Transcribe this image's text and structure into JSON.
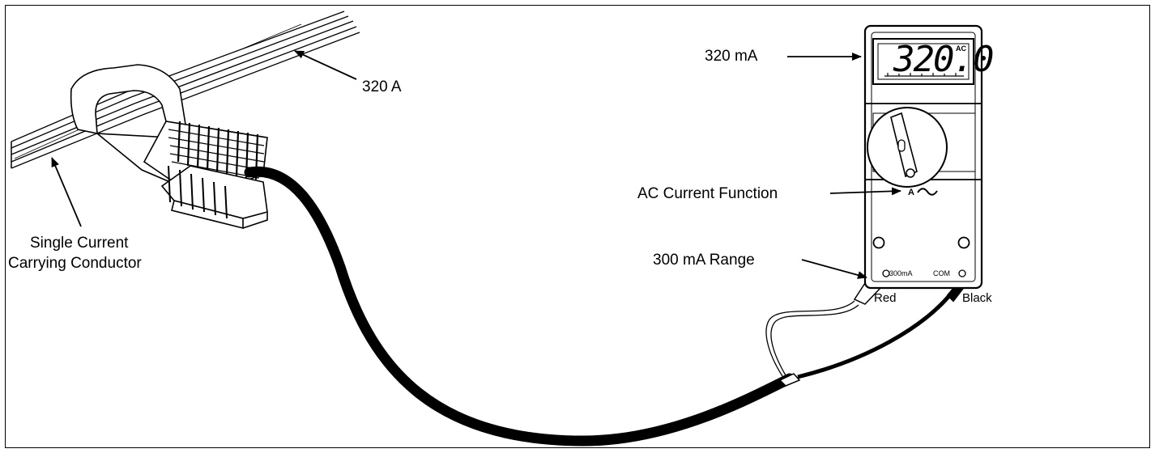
{
  "labels": {
    "conductor_current": "320 A",
    "conductor_line1": "Single Current",
    "conductor_line2": "Carrying Conductor",
    "meter_reading_label": "320 mA",
    "function_label": "AC Current Function",
    "range_label": "300 mA Range",
    "red_lead": "Red",
    "black_lead": "Black"
  },
  "meter": {
    "display_value": "320.0",
    "display_mode": "AC",
    "function_symbol": "A",
    "jack_left": "300mA",
    "jack_right": "COM"
  }
}
